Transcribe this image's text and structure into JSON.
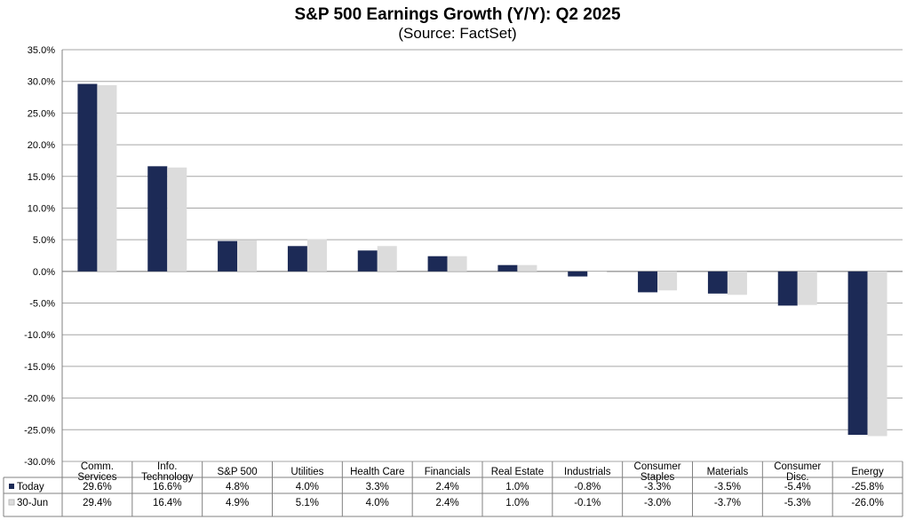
{
  "chart_data": {
    "type": "bar",
    "title": "S&P 500 Earnings Growth (Y/Y): Q2 2025",
    "subtitle": "(Source: FactSet)",
    "categories": [
      [
        "Comm.",
        "Services"
      ],
      [
        "Info.",
        "Technology"
      ],
      [
        "S&P 500"
      ],
      [
        "Utilities"
      ],
      [
        "Health Care"
      ],
      [
        "Financials"
      ],
      [
        "Real Estate"
      ],
      [
        "Industrials"
      ],
      [
        "Consumer",
        "Staples"
      ],
      [
        "Materials"
      ],
      [
        "Consumer",
        "Disc."
      ],
      [
        "Energy"
      ]
    ],
    "series": [
      {
        "name": "Today",
        "color": "#1c2a56",
        "values": [
          29.6,
          16.6,
          4.8,
          4.0,
          3.3,
          2.4,
          1.0,
          -0.8,
          -3.3,
          -3.5,
          -5.4,
          -25.8
        ],
        "labels": [
          "29.6%",
          "16.6%",
          "4.8%",
          "4.0%",
          "3.3%",
          "2.4%",
          "1.0%",
          "-0.8%",
          "-3.3%",
          "-3.5%",
          "-5.4%",
          "-25.8%"
        ]
      },
      {
        "name": "30-Jun",
        "color": "#dcdcdc",
        "values": [
          29.4,
          16.4,
          4.9,
          5.1,
          4.0,
          2.4,
          1.0,
          -0.1,
          -3.0,
          -3.7,
          -5.3,
          -26.0
        ],
        "labels": [
          "29.4%",
          "16.4%",
          "4.9%",
          "5.1%",
          "4.0%",
          "2.4%",
          "1.0%",
          "-0.1%",
          "-3.0%",
          "-3.7%",
          "-5.3%",
          "-26.0%"
        ]
      }
    ],
    "ylim": [
      -30,
      35
    ],
    "yticks": [
      35,
      30,
      25,
      20,
      15,
      10,
      5,
      0,
      -5,
      -10,
      -15,
      -20,
      -25,
      -30
    ],
    "ytick_labels": [
      "35.0%",
      "30.0%",
      "25.0%",
      "20.0%",
      "15.0%",
      "10.0%",
      "5.0%",
      "0.0%",
      "-5.0%",
      "-10.0%",
      "-15.0%",
      "-20.0%",
      "-25.0%",
      "-30.0%"
    ],
    "grid": true,
    "legend": "data table below chart"
  }
}
